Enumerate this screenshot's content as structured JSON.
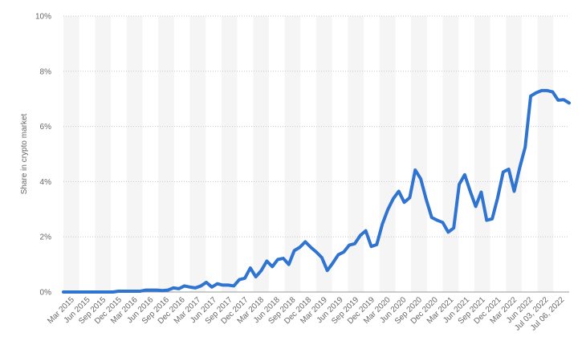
{
  "chart_data": {
    "type": "line",
    "title": "",
    "xlabel": "",
    "ylabel": "Share in crypto market",
    "ylim": [
      0,
      10
    ],
    "y_unit_suffix": "%",
    "y_ticks": [
      0,
      2,
      4,
      6,
      8,
      10
    ],
    "y_tick_labels": [
      "0%",
      "2%",
      "4%",
      "6%",
      "8%",
      "10%"
    ],
    "grid": true,
    "legend": "none",
    "colors": {
      "line": "#2f74d0",
      "grid": "#c9c9c9",
      "band": "#f5f5f5"
    },
    "x_tick_labels": [
      "Mar 2015",
      "Jun 2015",
      "Sep 2015",
      "Dec 2015",
      "Mar 2016",
      "Jun 2016",
      "Sep 2016",
      "Dec 2016",
      "Mar 2017",
      "Jun 2017",
      "Sep 2017",
      "Dec 2017",
      "Mar 2018",
      "Jun 2018",
      "Sep 2018",
      "Dec 2018",
      "Mar 2019",
      "Jun 2019",
      "Sep 2019",
      "Dec 2019",
      "Mar 2020",
      "Jun 2020",
      "Sep 2020",
      "Dec 2020",
      "Mar 2021",
      "Jun 2021",
      "Sep 2021",
      "Dec 2021",
      "Mar 2022",
      "Jun 2022",
      "Jul 03, 2022",
      "Jul 06, 2022"
    ],
    "series": [
      {
        "values": [
          0.0,
          0.0,
          0.0,
          0.0,
          0.0,
          0.0,
          0.0,
          0.0,
          0.0,
          0.0,
          0.03,
          0.03,
          0.03,
          0.03,
          0.03,
          0.07,
          0.07,
          0.07,
          0.05,
          0.07,
          0.15,
          0.12,
          0.22,
          0.18,
          0.15,
          0.22,
          0.35,
          0.18,
          0.3,
          0.25,
          0.25,
          0.22,
          0.45,
          0.5,
          0.87,
          0.55,
          0.78,
          1.12,
          0.92,
          1.18,
          1.22,
          1.0,
          1.5,
          1.62,
          1.82,
          1.62,
          1.45,
          1.25,
          0.78,
          1.05,
          1.35,
          1.45,
          1.7,
          1.75,
          2.05,
          2.22,
          1.65,
          1.72,
          2.45,
          2.98,
          3.38,
          3.65,
          3.25,
          3.42,
          4.42,
          4.1,
          3.35,
          2.7,
          2.6,
          2.52,
          2.17,
          2.32,
          3.9,
          4.25,
          3.65,
          3.1,
          3.62,
          2.6,
          2.65,
          3.42,
          4.35,
          4.45,
          3.65,
          4.5,
          5.25,
          7.1,
          7.22,
          7.3,
          7.3,
          7.25,
          6.95,
          6.97,
          6.85
        ]
      }
    ]
  }
}
